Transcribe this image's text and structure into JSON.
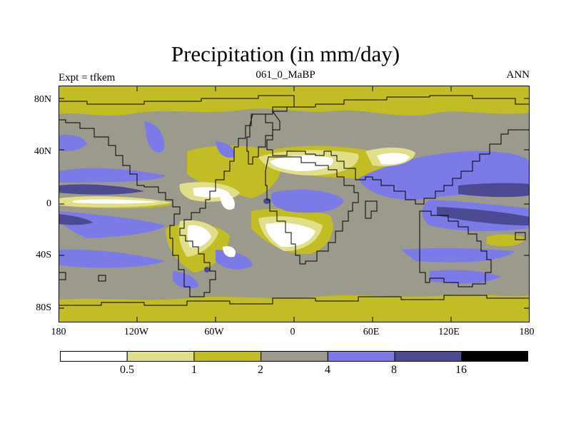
{
  "header": {
    "title": "Precipitation (in mm/day)",
    "subtitle": "061_0_MaBP",
    "left_label": "Expt = tfkem",
    "right_label": "ANN"
  },
  "axes": {
    "lat_labels": [
      "80N",
      "40N",
      "0",
      "40S",
      "80S"
    ],
    "lon_labels": [
      "180",
      "120W",
      "60W",
      "0",
      "60E",
      "120E",
      "180"
    ]
  },
  "colorbar": {
    "colors": [
      "#ffffff",
      "#e2df8a",
      "#c2bd24",
      "#9c9a8d",
      "#7b7ae6",
      "#4b4a92",
      "#000000"
    ],
    "labels": [
      "0.5",
      "1",
      "2",
      "4",
      "8",
      "16"
    ]
  }
}
